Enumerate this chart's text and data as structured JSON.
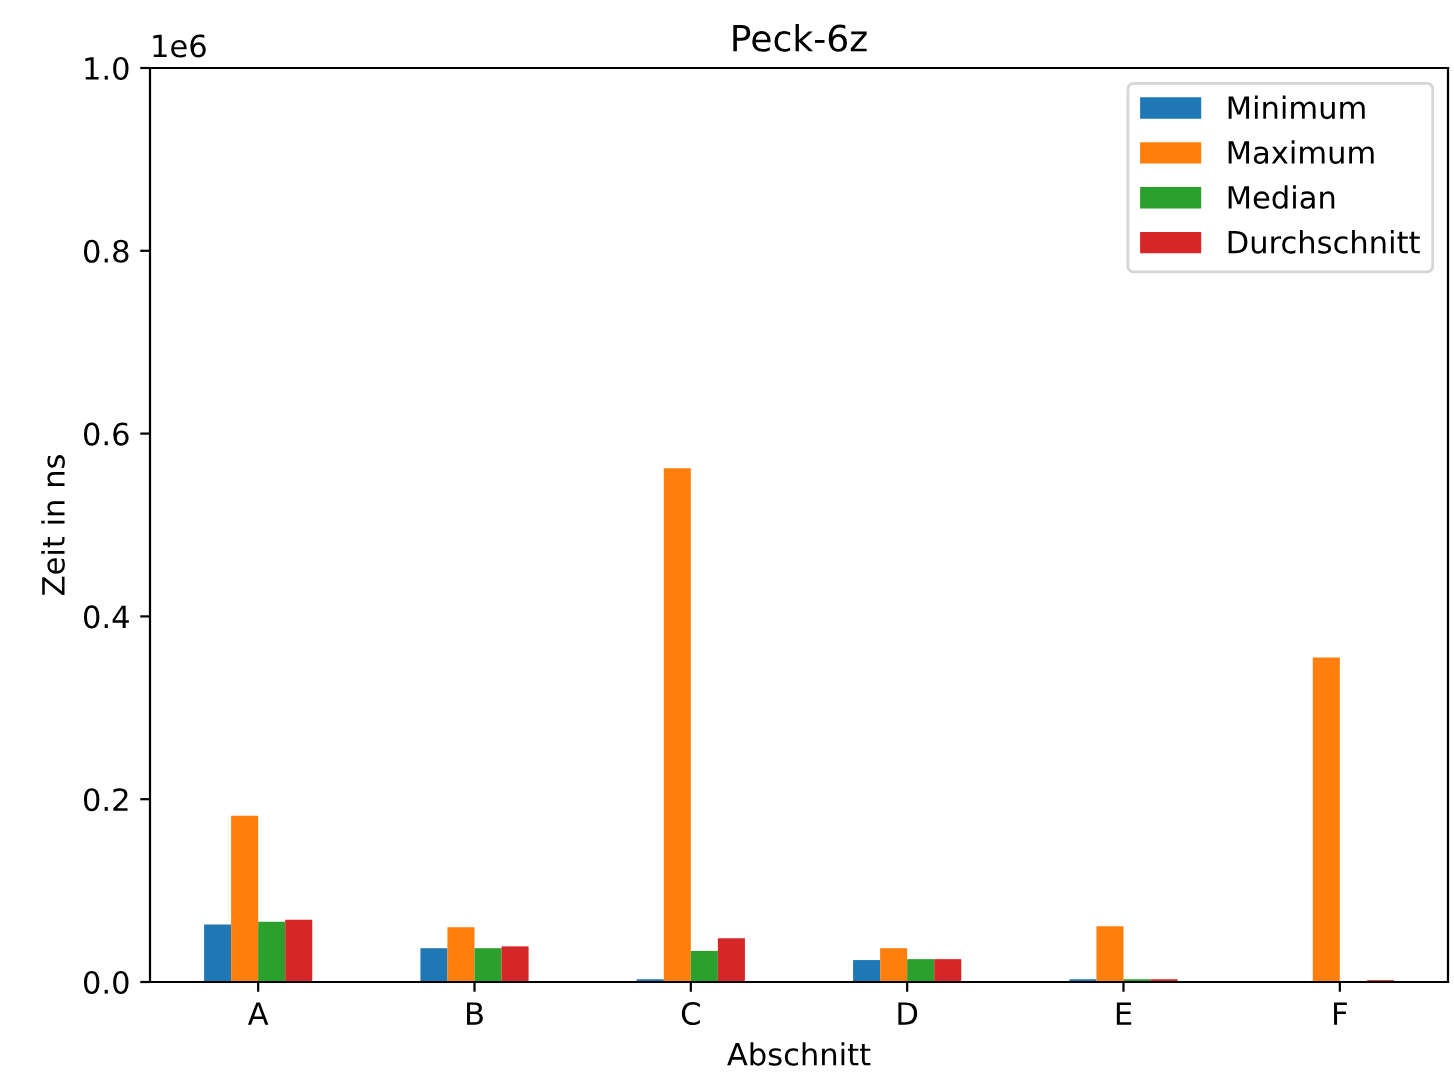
{
  "chart_data": {
    "type": "bar",
    "title": "Peck-6z",
    "xlabel": "Abschnitt",
    "ylabel": "Zeit in ns",
    "categories": [
      "A",
      "B",
      "C",
      "D",
      "E",
      "F"
    ],
    "series": [
      {
        "name": "Minimum",
        "color": "#1f77b4",
        "values": [
          0.063,
          0.037,
          0.003,
          0.024,
          0.003,
          null
        ]
      },
      {
        "name": "Maximum",
        "color": "#ff7f0e",
        "values": [
          0.182,
          0.06,
          0.562,
          0.037,
          0.061,
          0.355
        ]
      },
      {
        "name": "Median",
        "color": "#2ca02c",
        "values": [
          0.066,
          0.037,
          0.034,
          0.025,
          0.003,
          null
        ]
      },
      {
        "name": "Durchschnitt",
        "color": "#d62728",
        "values": [
          0.068,
          0.039,
          0.048,
          0.025,
          0.003,
          0.002
        ]
      }
    ],
    "ylim": [
      0.0,
      1.0
    ],
    "yticks": [
      {
        "value": 0,
        "label": "0.0"
      },
      0.2,
      0.4,
      0.6,
      0.8,
      {
        "value": 1,
        "label": "1.0"
      }
    ],
    "annotations": [
      "1e6"
    ],
    "legend": "top right",
    "grid": false
  }
}
